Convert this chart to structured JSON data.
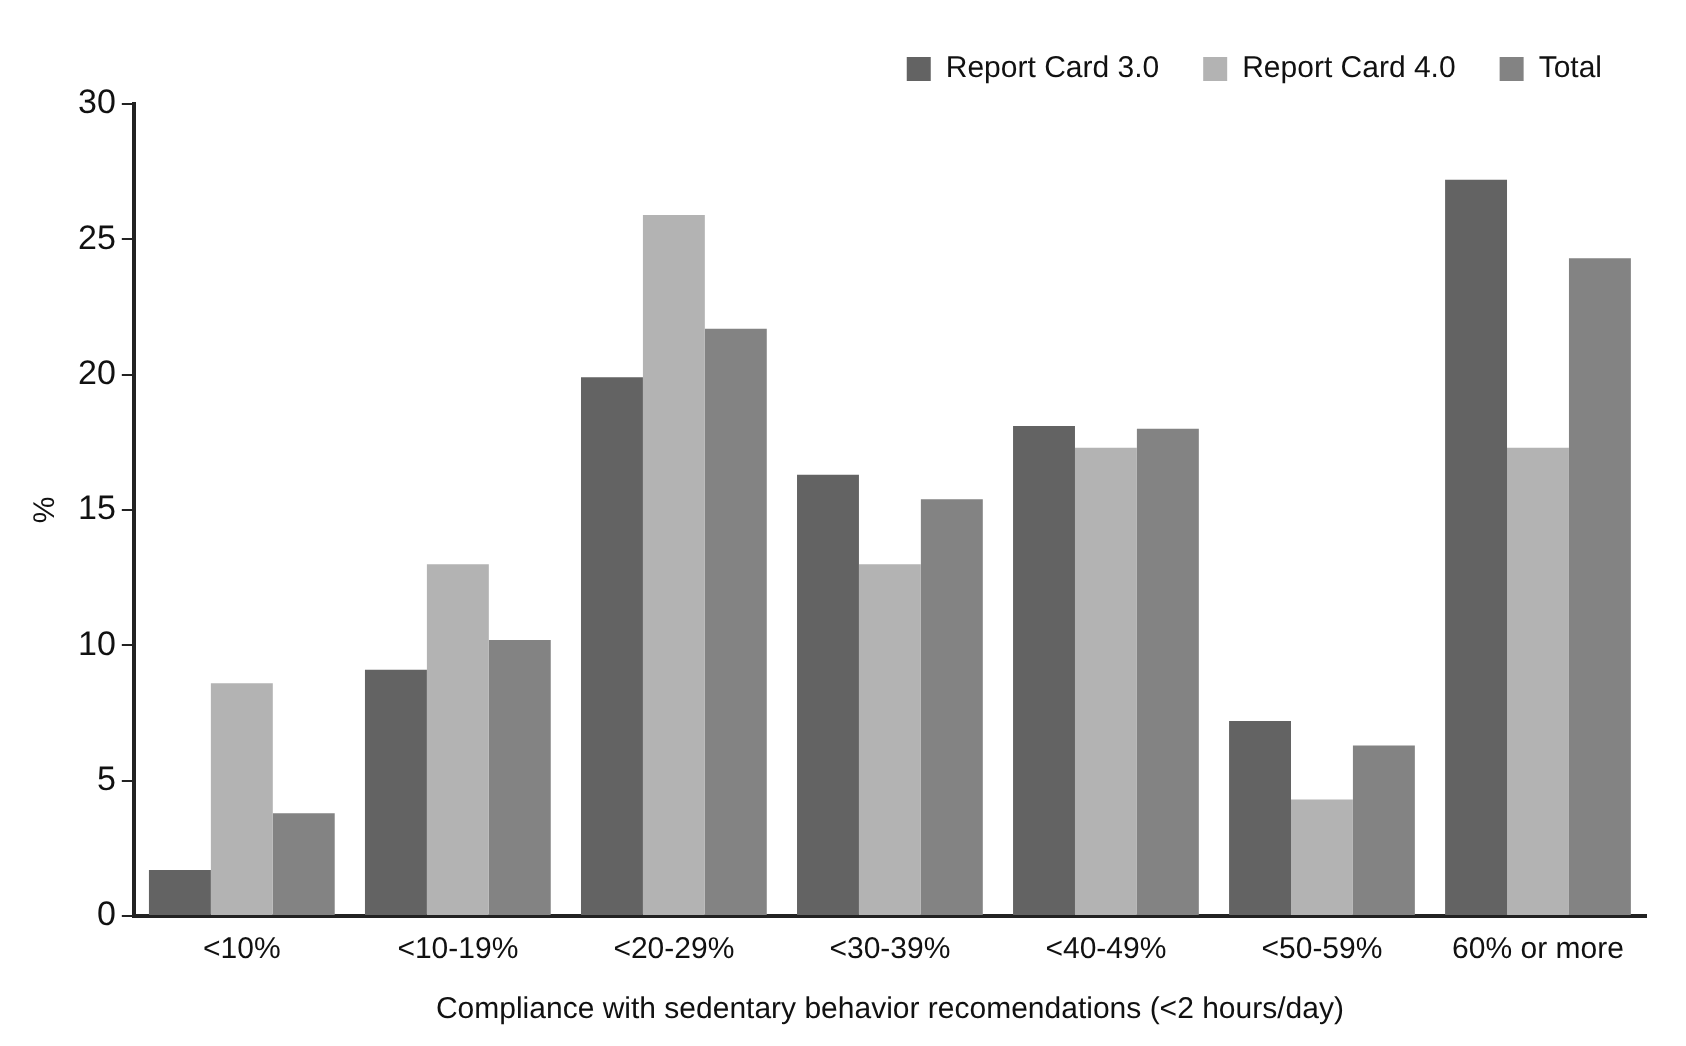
{
  "chart_data": {
    "type": "bar",
    "xlabel": "Compliance with sedentary behavior recomendations (<2 hours/day)",
    "ylabel": "%",
    "categories": [
      "<10%",
      "<10-19%",
      "<20-29%",
      "<30-39%",
      "<40-49%",
      "<50-59%",
      "60% or more"
    ],
    "series": [
      {
        "name": "Report Card 3.0",
        "color": "#636363",
        "values": [
          1.7,
          9.1,
          19.9,
          16.3,
          18.1,
          7.2,
          27.2
        ]
      },
      {
        "name": "Report Card 4.0",
        "color": "#b3b3b3",
        "values": [
          8.6,
          13.0,
          25.9,
          13.0,
          17.3,
          4.3,
          17.3
        ]
      },
      {
        "name": "Total",
        "color": "#838383",
        "values": [
          3.8,
          10.2,
          21.7,
          15.4,
          18.0,
          6.3,
          24.3
        ]
      }
    ],
    "ylim": [
      0,
      30
    ],
    "yticks": [
      0,
      5,
      10,
      15,
      20,
      25,
      30
    ],
    "grid": false,
    "legend": "top right"
  }
}
